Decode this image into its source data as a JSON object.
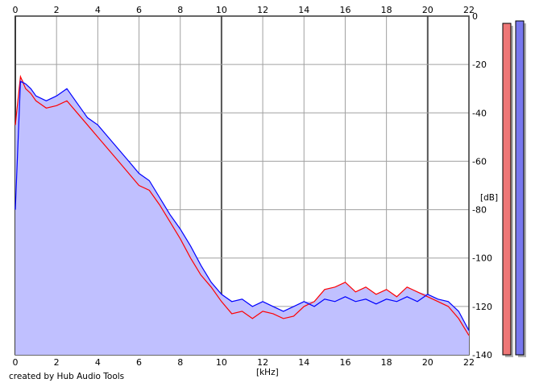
{
  "credit": "created by Hub Audio Tools",
  "chart_data": {
    "type": "area",
    "xlabel": "[kHz]",
    "ylabel": "[dB]",
    "xlim": [
      0,
      22
    ],
    "ylim": [
      -140,
      0
    ],
    "x_ticks": [
      0,
      2,
      4,
      6,
      8,
      10,
      12,
      14,
      16,
      18,
      20,
      22
    ],
    "y_ticks": [
      0,
      -20,
      -40,
      -60,
      -80,
      -100,
      -120,
      -140
    ],
    "grid": true,
    "series": [
      {
        "color": "#ff0000",
        "x": [
          0.0,
          0.25,
          0.5,
          0.75,
          1.0,
          1.5,
          2.0,
          2.5,
          3.0,
          3.5,
          4.0,
          4.5,
          5.0,
          5.5,
          6.0,
          6.5,
          7.0,
          7.5,
          8.0,
          8.5,
          9.0,
          9.5,
          10.0,
          10.5,
          11.0,
          11.5,
          12.0,
          12.5,
          13.0,
          13.5,
          14.0,
          14.5,
          15.0,
          15.5,
          16.0,
          16.5,
          17.0,
          17.5,
          18.0,
          18.5,
          19.0,
          19.5,
          20.0,
          20.5,
          21.0,
          21.5,
          22.0
        ],
        "y": [
          -45,
          -25,
          -30,
          -32,
          -35,
          -38,
          -37,
          -35,
          -40,
          -45,
          -50,
          -55,
          -60,
          -65,
          -70,
          -72,
          -78,
          -85,
          -92,
          -100,
          -107,
          -112,
          -118,
          -123,
          -122,
          -125,
          -122,
          -123,
          -125,
          -124,
          -120,
          -118,
          -113,
          -112,
          -110,
          -114,
          -112,
          -115,
          -113,
          -116,
          -112,
          -114,
          -116,
          -118,
          -120,
          -125,
          -132
        ]
      },
      {
        "color": "#0000ff",
        "x": [
          0.0,
          0.25,
          0.5,
          0.75,
          1.0,
          1.5,
          2.0,
          2.5,
          3.0,
          3.5,
          4.0,
          4.5,
          5.0,
          5.5,
          6.0,
          6.5,
          7.0,
          7.5,
          8.0,
          8.5,
          9.0,
          9.5,
          10.0,
          10.5,
          11.0,
          11.5,
          12.0,
          12.5,
          13.0,
          13.5,
          14.0,
          14.5,
          15.0,
          15.5,
          16.0,
          16.5,
          17.0,
          17.5,
          18.0,
          18.5,
          19.0,
          19.5,
          20.0,
          20.5,
          21.0,
          21.5,
          22.0
        ],
        "y": [
          -80,
          -27,
          -28,
          -30,
          -33,
          -35,
          -33,
          -30,
          -36,
          -42,
          -45,
          -50,
          -55,
          -60,
          -65,
          -68,
          -75,
          -82,
          -88,
          -95,
          -103,
          -110,
          -115,
          -118,
          -117,
          -120,
          -118,
          -120,
          -122,
          -120,
          -118,
          -120,
          -117,
          -118,
          -116,
          -118,
          -117,
          -119,
          -117,
          -118,
          -116,
          -118,
          -115,
          -117,
          -118,
          -122,
          -130
        ]
      }
    ],
    "level_meters": [
      {
        "channel": "left",
        "color": "#ee7777",
        "level_db": -3
      },
      {
        "channel": "right",
        "color": "#7777ee",
        "level_db": -2
      }
    ]
  }
}
